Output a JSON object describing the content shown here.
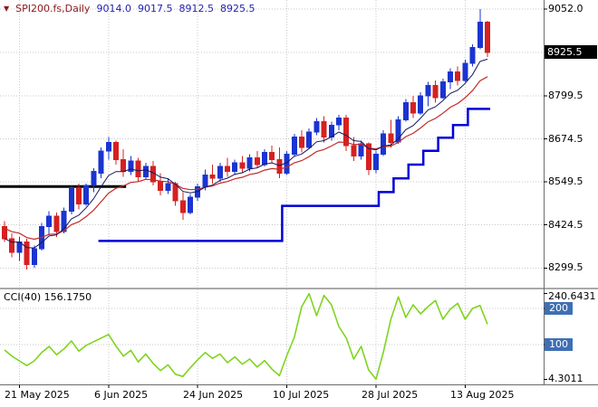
{
  "colors": {
    "bull": "#1a34d0",
    "bear": "#d62020",
    "ma_fast": "#16165e",
    "ma_slow": "#c22a2a",
    "trail": "#0000d8",
    "cci": "#7fd41f",
    "hline": "#000000",
    "grid": "#c9c9c9",
    "level_box": "#3f6fb5",
    "price_box_bg": "#000000",
    "symbol": "#8b1a1a",
    "ohlc_text": "#2222b0"
  },
  "header": {
    "symbol_label": "SPI200.fs,Daily",
    "open": "9014.0",
    "high": "9017.5",
    "low": "8912.5",
    "close": "8925.5"
  },
  "price_axis": {
    "ticks": [
      {
        "label": "9052.0",
        "price": 9052.0
      },
      {
        "label": "8799.5",
        "price": 8799.5
      },
      {
        "label": "8674.5",
        "price": 8674.5
      },
      {
        "label": "8549.5",
        "price": 8549.5
      },
      {
        "label": "8424.5",
        "price": 8424.5
      },
      {
        "label": "8299.5",
        "price": 8299.5
      }
    ],
    "current_price": {
      "label": "8925.5",
      "price": 8925.5
    }
  },
  "time_axis": {
    "ticks": [
      {
        "index": 2,
        "text": "21 May 2025"
      },
      {
        "index": 14,
        "text": "6 Jun 2025"
      },
      {
        "index": 26,
        "text": "24 Jun 2025"
      },
      {
        "index": 38,
        "text": "10 Jul 2025"
      },
      {
        "index": 50,
        "text": "28 Jul 2025"
      },
      {
        "index": 62,
        "text": "13 Aug 2025"
      }
    ]
  },
  "indicator_panel": {
    "label": "CCI(40) 156.1750",
    "max": {
      "label": "240.6431",
      "value": 240.6431
    },
    "min": {
      "label": "4.3011",
      "value": 4.3011
    },
    "levels": [
      {
        "label": "200",
        "value": 200
      },
      {
        "label": "100",
        "value": 100
      }
    ]
  },
  "chart_data": [
    {
      "type": "candlestick",
      "title": "SPI200.fs,Daily",
      "symbol": "SPI200.fs",
      "timeframe": "Daily",
      "ylim": [
        8242.4,
        9078.5
      ],
      "x_tick_indices": [
        2,
        14,
        26,
        38,
        50,
        62
      ],
      "x_tick_labels": [
        "21 May 2025",
        "6 Jun 2025",
        "24 Jun 2025",
        "10 Jul 2025",
        "28 Jul 2025",
        "13 Aug 2025"
      ],
      "candles": [
        [
          8420,
          8435,
          8375,
          8385
        ],
        [
          8385,
          8400,
          8330,
          8345
        ],
        [
          8345,
          8390,
          8320,
          8375
        ],
        [
          8375,
          8385,
          8295,
          8310
        ],
        [
          8310,
          8365,
          8300,
          8355
        ],
        [
          8355,
          8430,
          8350,
          8420
        ],
        [
          8420,
          8465,
          8395,
          8450
        ],
        [
          8450,
          8460,
          8390,
          8405
        ],
        [
          8405,
          8475,
          8400,
          8465
        ],
        [
          8465,
          8540,
          8455,
          8530
        ],
        [
          8530,
          8545,
          8470,
          8485
        ],
        [
          8485,
          8545,
          8480,
          8540
        ],
        [
          8540,
          8590,
          8520,
          8580
        ],
        [
          8575,
          8650,
          8560,
          8640
        ],
        [
          8640,
          8680,
          8615,
          8665
        ],
        [
          8665,
          8670,
          8600,
          8615
        ],
        [
          8615,
          8645,
          8565,
          8580
        ],
        [
          8580,
          8625,
          8570,
          8610
        ],
        [
          8610,
          8620,
          8550,
          8565
        ],
        [
          8565,
          8605,
          8555,
          8595
        ],
        [
          8595,
          8610,
          8540,
          8550
        ],
        [
          8550,
          8575,
          8510,
          8525
        ],
        [
          8525,
          8560,
          8515,
          8545
        ],
        [
          8545,
          8550,
          8480,
          8495
        ],
        [
          8495,
          8520,
          8440,
          8460
        ],
        [
          8460,
          8515,
          8455,
          8505
        ],
        [
          8505,
          8545,
          8495,
          8535
        ],
        [
          8535,
          8585,
          8525,
          8570
        ],
        [
          8570,
          8600,
          8545,
          8560
        ],
        [
          8560,
          8605,
          8550,
          8595
        ],
        [
          8595,
          8620,
          8565,
          8580
        ],
        [
          8580,
          8615,
          8570,
          8605
        ],
        [
          8605,
          8625,
          8575,
          8590
        ],
        [
          8590,
          8630,
          8580,
          8620
        ],
        [
          8620,
          8640,
          8590,
          8600
        ],
        [
          8600,
          8645,
          8595,
          8635
        ],
        [
          8635,
          8655,
          8605,
          8615
        ],
        [
          8615,
          8650,
          8560,
          8575
        ],
        [
          8575,
          8640,
          8570,
          8630
        ],
        [
          8630,
          8690,
          8625,
          8680
        ],
        [
          8680,
          8700,
          8635,
          8650
        ],
        [
          8650,
          8705,
          8645,
          8695
        ],
        [
          8695,
          8735,
          8685,
          8725
        ],
        [
          8725,
          8740,
          8665,
          8680
        ],
        [
          8680,
          8725,
          8670,
          8715
        ],
        [
          8715,
          8745,
          8700,
          8735
        ],
        [
          8735,
          8745,
          8640,
          8655
        ],
        [
          8655,
          8680,
          8610,
          8625
        ],
        [
          8625,
          8670,
          8615,
          8660
        ],
        [
          8660,
          8665,
          8570,
          8585
        ],
        [
          8585,
          8640,
          8575,
          8630
        ],
        [
          8630,
          8700,
          8625,
          8690
        ],
        [
          8690,
          8730,
          8650,
          8665
        ],
        [
          8665,
          8740,
          8660,
          8730
        ],
        [
          8730,
          8790,
          8725,
          8780
        ],
        [
          8780,
          8800,
          8735,
          8750
        ],
        [
          8750,
          8810,
          8745,
          8800
        ],
        [
          8800,
          8840,
          8770,
          8830
        ],
        [
          8830,
          8845,
          8780,
          8795
        ],
        [
          8795,
          8850,
          8790,
          8840
        ],
        [
          8840,
          8880,
          8820,
          8870
        ],
        [
          8870,
          8885,
          8830,
          8845
        ],
        [
          8845,
          8905,
          8840,
          8895
        ],
        [
          8895,
          8950,
          8885,
          8940
        ],
        [
          8940,
          9052,
          8935,
          9014
        ],
        [
          9014,
          9017.5,
          8912.5,
          8925.5
        ]
      ],
      "overlays": {
        "ma_fast": {
          "type": "ema",
          "period": 7,
          "color_ref": "ma_fast"
        },
        "ma_slow": {
          "type": "ema",
          "period": 13,
          "color_ref": "ma_slow"
        },
        "trailing_stop_steps": [
          {
            "from": 13,
            "to": 37,
            "value": 8378
          },
          {
            "from": 38,
            "to": 50,
            "value": 8480
          },
          {
            "from": 51,
            "to": 52,
            "value": 8520
          },
          {
            "from": 53,
            "to": 54,
            "value": 8560
          },
          {
            "from": 55,
            "to": 56,
            "value": 8600
          },
          {
            "from": 57,
            "to": 58,
            "value": 8640
          },
          {
            "from": 59,
            "to": 60,
            "value": 8678
          },
          {
            "from": 61,
            "to": 62,
            "value": 8715
          },
          {
            "from": 63,
            "to": 65,
            "value": 8762
          }
        ],
        "horizontal_segment": {
          "from": 0,
          "to": 16,
          "value": 8536
        }
      }
    },
    {
      "type": "line",
      "title": "CCI(40)",
      "last_value": 156.175,
      "ylim": [
        -7.5,
        252.5
      ],
      "levels": [
        200,
        100
      ],
      "values": [
        85,
        68,
        55,
        42,
        55,
        78,
        95,
        72,
        88,
        110,
        82,
        98,
        108,
        118,
        128,
        96,
        68,
        84,
        52,
        74,
        48,
        28,
        44,
        18,
        12,
        36,
        58,
        78,
        62,
        74,
        50,
        66,
        46,
        60,
        38,
        56,
        32,
        14,
        70,
        120,
        205,
        240.6431,
        180,
        236,
        210,
        150,
        118,
        60,
        95,
        30,
        4.3011,
        80,
        170,
        232,
        175,
        210,
        185,
        205,
        222,
        170,
        198,
        214,
        170,
        200,
        208,
        156.175
      ]
    }
  ]
}
